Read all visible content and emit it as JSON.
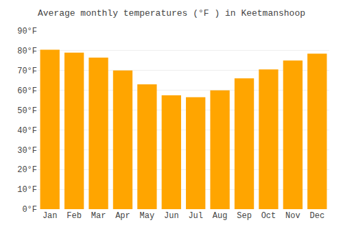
{
  "chart_data": {
    "type": "bar",
    "title": "Average monthly temperatures (°F ) in Keetmanshoop",
    "categories": [
      "Jan",
      "Feb",
      "Mar",
      "Apr",
      "May",
      "Jun",
      "Jul",
      "Aug",
      "Sep",
      "Oct",
      "Nov",
      "Dec"
    ],
    "values": [
      80.5,
      79,
      76.5,
      70,
      63,
      57.5,
      56.5,
      60,
      66,
      70.5,
      75,
      78.5
    ],
    "color": "#FFA500",
    "ylim": [
      0,
      90
    ],
    "yticks": [
      {
        "value": 0,
        "label": "0°F"
      },
      {
        "value": 10,
        "label": "10°F"
      },
      {
        "value": 20,
        "label": "20°F"
      },
      {
        "value": 30,
        "label": "30°F"
      },
      {
        "value": 40,
        "label": "40°F"
      },
      {
        "value": 50,
        "label": "50°F"
      },
      {
        "value": 60,
        "label": "60°F"
      },
      {
        "value": 70,
        "label": "70°F"
      },
      {
        "value": 80,
        "label": "80°F"
      },
      {
        "value": 90,
        "label": "90°F"
      }
    ],
    "grid": true
  }
}
